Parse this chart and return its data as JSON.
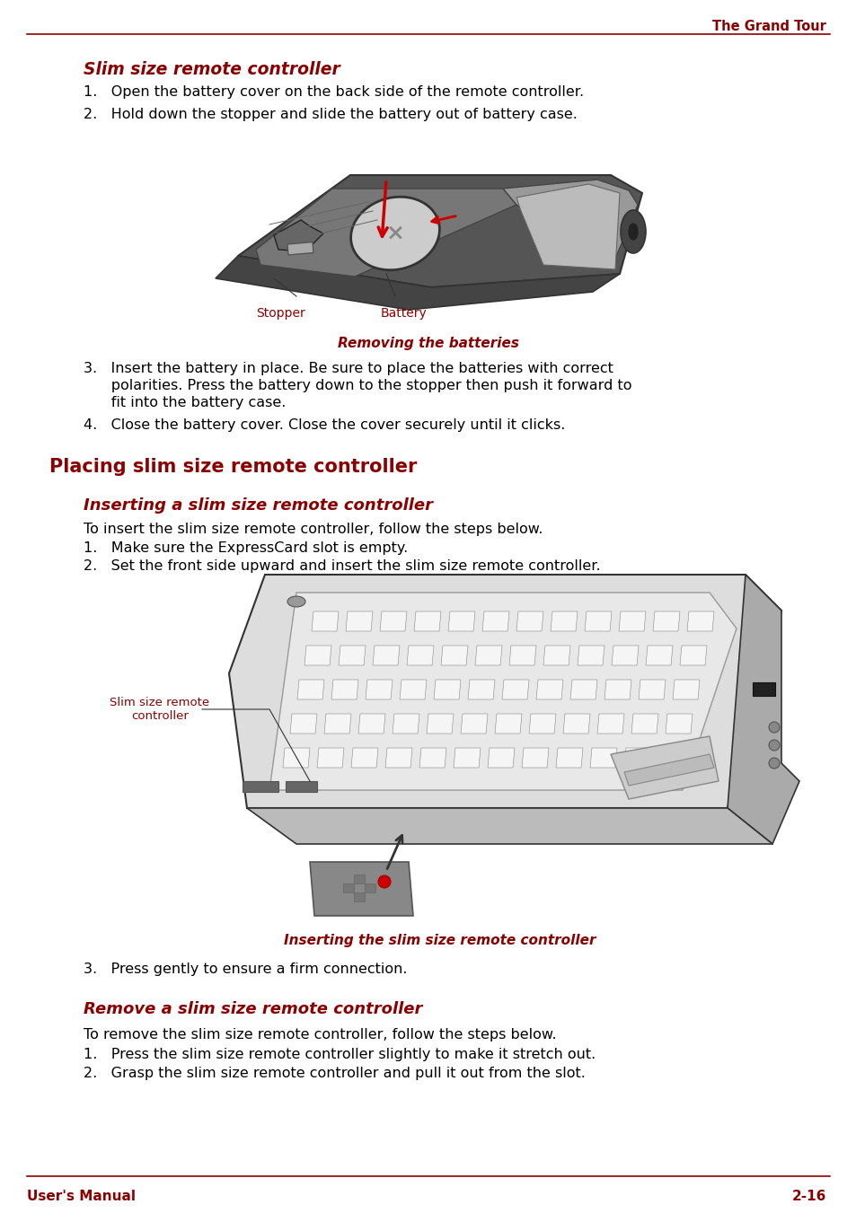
{
  "bg_color": "#ffffff",
  "text_color": "#000000",
  "red_color": "#8B0000",
  "header_text": "The Grand Tour",
  "footer_left": "User's Manual",
  "footer_right": "2-16",
  "sec1_title": "Slim size remote controller",
  "item1": "1.   Open the battery cover on the back side of the remote controller.",
  "item2": "2.   Hold down the stopper and slide the battery out of battery case.",
  "caption1": "Removing the batteries",
  "label_stopper": "Stopper",
  "label_battery": "Battery",
  "item3_line1": "3.   Insert the battery in place. Be sure to place the batteries with correct",
  "item3_line2": "      polarities. Press the battery down to the stopper then push it forward to",
  "item3_line3": "      fit into the battery case.",
  "item4": "4.   Close the battery cover. Close the cover securely until it clicks.",
  "sec2_title": "Placing slim size remote controller",
  "sec2a_title": "Inserting a slim size remote controller",
  "intro2a": "To insert the slim size remote controller, follow the steps below.",
  "item2a_1": "1.   Make sure the ExpressCard slot is empty.",
  "item2a_2": "2.   Set the front side upward and insert the slim size remote controller.",
  "caption2": "Inserting the slim size remote controller",
  "label_slim": "Slim size remote\ncontroller",
  "item2a_3": "3.   Press gently to ensure a firm connection.",
  "sec3_title": "Remove a slim size remote controller",
  "intro3": "To remove the slim size remote controller, follow the steps below.",
  "item3_1": "1.   Press the slim size remote controller slightly to make it stretch out.",
  "item3_2": "2.   Grasp the slim size remote controller and pull it out from the slot.",
  "font_body": 11.5,
  "font_sec1": 13.5,
  "font_sec2": 15,
  "font_sec2a": 13,
  "font_caption": 11,
  "font_footer": 11,
  "font_header": 10.5
}
